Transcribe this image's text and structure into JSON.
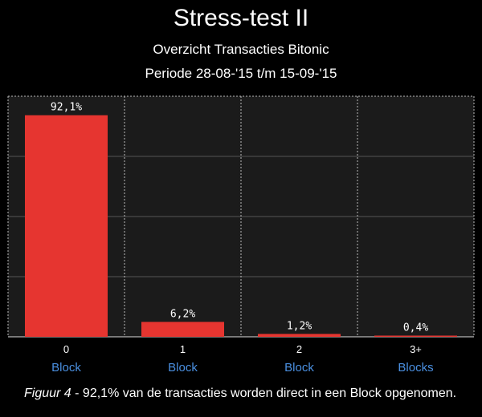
{
  "header": {
    "title": "Stress-test II",
    "subtitle": "Overzicht Transacties Bitonic",
    "period": "Periode 28-08-'15 t/m 15-09-'15"
  },
  "caption": {
    "figure_label": "Figuur 4",
    "separator": " -  ",
    "text": "92,1% van de transacties worden direct in een Block opgenomen."
  },
  "colors": {
    "background": "#000000",
    "bar": "#e63530",
    "category_unit": "#4a8fe0",
    "grid": "#555555",
    "text": "#ffffff"
  },
  "chart_data": {
    "type": "bar",
    "categories": [
      "0",
      "1",
      "2",
      "3+"
    ],
    "category_units": [
      "Block",
      "Block",
      "Block",
      "Blocks"
    ],
    "values": [
      92.1,
      6.2,
      1.2,
      0.4
    ],
    "value_labels": [
      "92,1%",
      "6,2%",
      "1,2%",
      "0,4%"
    ],
    "ylim": [
      0,
      100
    ],
    "grid": true
  }
}
